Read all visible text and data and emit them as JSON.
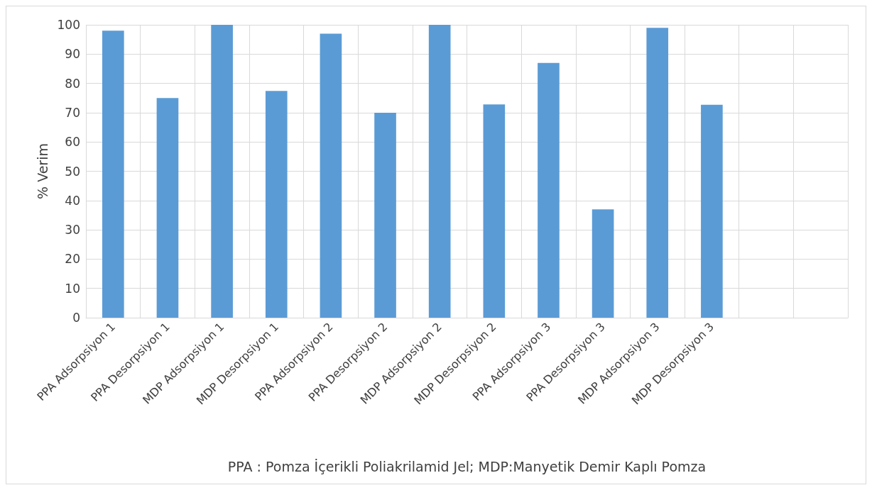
{
  "chart_data": {
    "type": "bar",
    "xlabel": "PPA : Pomza İçerikli Poliakrilamid Jel; MDP:Manyetik Demir Kaplı Pomza",
    "ylabel": "% Verim",
    "categories": [
      "PPA Adsorpsiyon 1",
      "PPA Desorpsiyon 1",
      "MDP Adsorpsiyon 1",
      "MDP Desorpsiyon 1",
      "PPA Adsorpsiyon 2",
      "PPA Desorpsiyon 2",
      "MDP Adsorpsiyon 2",
      "MDP Desorpsiyon 2",
      "PPA Adsorpsiyon 3",
      "PPA Desorpsiyon 3",
      "MDP Adsorpsiyon 3",
      "MDP Desorpsiyon 3",
      null,
      null
    ],
    "values": [
      98,
      75,
      100,
      77.4,
      97,
      70,
      100,
      72.8,
      87,
      37,
      99,
      72.7,
      null,
      null
    ],
    "color": "#5b9bd5",
    "ylim": [
      0,
      100
    ],
    "yticks": [
      0,
      10,
      20,
      30,
      40,
      50,
      60,
      70,
      80,
      90,
      100
    ],
    "grid": true
  }
}
